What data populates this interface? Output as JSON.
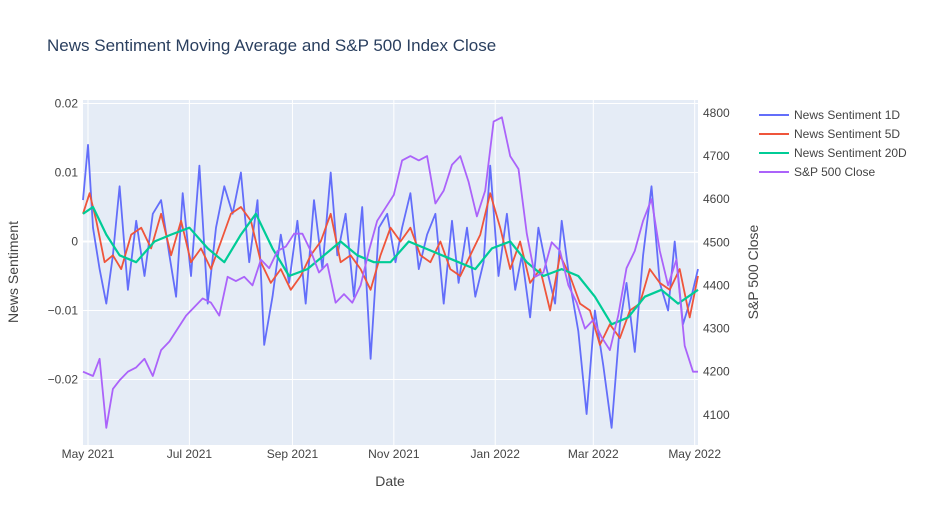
{
  "chart_data": {
    "type": "line",
    "title": "News Sentiment Moving Average and S&P 500 Index Close",
    "xlabel": "Date",
    "ylabel": "News Sentiment",
    "y2label": "S&P 500 Close",
    "xrange": [
      "2021-04-28",
      "2022-05-03"
    ],
    "ylim": [
      -0.0295,
      0.0205
    ],
    "y2lim": [
      4030,
      4830
    ],
    "x_ticks": [
      {
        "value": "2021-05-01",
        "label": "May 2021"
      },
      {
        "value": "2021-07-01",
        "label": "Jul 2021"
      },
      {
        "value": "2021-09-01",
        "label": "Sep 2021"
      },
      {
        "value": "2021-11-01",
        "label": "Nov 2021"
      },
      {
        "value": "2022-01-01",
        "label": "Jan 2022"
      },
      {
        "value": "2022-03-01",
        "label": "Mar 2022"
      },
      {
        "value": "2022-05-01",
        "label": "May 2022"
      }
    ],
    "y_ticks": [
      {
        "value": 0.02,
        "label": "0.02"
      },
      {
        "value": 0.01,
        "label": "0.01"
      },
      {
        "value": 0,
        "label": "0"
      },
      {
        "value": -0.01,
        "label": "−0.01"
      },
      {
        "value": -0.02,
        "label": "−0.02"
      }
    ],
    "y2_ticks": [
      {
        "value": 4800,
        "label": "4800"
      },
      {
        "value": 4700,
        "label": "4700"
      },
      {
        "value": 4600,
        "label": "4600"
      },
      {
        "value": 4500,
        "label": "4500"
      },
      {
        "value": 4400,
        "label": "4400"
      },
      {
        "value": 4300,
        "label": "4300"
      },
      {
        "value": 4200,
        "label": "4200"
      },
      {
        "value": 4100,
        "label": "4100"
      }
    ],
    "grid": true,
    "legend": "right",
    "series": [
      {
        "name": "News Sentiment 1D",
        "color": "#636efa",
        "axis": "y",
        "x": [
          "2021-04-28",
          "2021-05-01",
          "2021-05-04",
          "2021-05-08",
          "2021-05-12",
          "2021-05-16",
          "2021-05-20",
          "2021-05-25",
          "2021-05-30",
          "2021-06-04",
          "2021-06-09",
          "2021-06-14",
          "2021-06-19",
          "2021-06-23",
          "2021-06-27",
          "2021-07-02",
          "2021-07-07",
          "2021-07-12",
          "2021-07-17",
          "2021-07-22",
          "2021-07-27",
          "2021-08-01",
          "2021-08-06",
          "2021-08-11",
          "2021-08-15",
          "2021-08-20",
          "2021-08-25",
          "2021-08-30",
          "2021-09-04",
          "2021-09-09",
          "2021-09-14",
          "2021-09-19",
          "2021-09-24",
          "2021-09-28",
          "2021-10-03",
          "2021-10-08",
          "2021-10-13",
          "2021-10-18",
          "2021-10-23",
          "2021-10-28",
          "2021-11-02",
          "2021-11-06",
          "2021-11-11",
          "2021-11-16",
          "2021-11-21",
          "2021-11-26",
          "2021-12-01",
          "2021-12-06",
          "2021-12-10",
          "2021-12-15",
          "2021-12-20",
          "2021-12-25",
          "2021-12-29",
          "2022-01-03",
          "2022-01-08",
          "2022-01-13",
          "2022-01-17",
          "2022-01-22",
          "2022-01-27",
          "2022-02-01",
          "2022-02-06",
          "2022-02-10",
          "2022-02-15",
          "2022-02-20",
          "2022-02-25",
          "2022-03-02",
          "2022-03-07",
          "2022-03-12",
          "2022-03-17",
          "2022-03-21",
          "2022-03-26",
          "2022-03-31",
          "2022-04-05",
          "2022-04-10",
          "2022-04-15",
          "2022-04-19",
          "2022-04-24",
          "2022-04-29",
          "2022-05-03"
        ],
        "y": [
          0.006,
          0.014,
          0.002,
          -0.004,
          -0.009,
          -0.002,
          0.008,
          -0.007,
          0.003,
          -0.005,
          0.004,
          0.006,
          -0.002,
          -0.008,
          0.007,
          -0.005,
          0.011,
          -0.009,
          0.002,
          0.008,
          0.004,
          0.01,
          -0.003,
          0.006,
          -0.015,
          -0.008,
          0.001,
          -0.006,
          0.003,
          -0.009,
          0.006,
          -0.004,
          0.01,
          -0.002,
          0.004,
          -0.008,
          0.005,
          -0.017,
          0.002,
          0.004,
          -0.003,
          0.002,
          0.007,
          -0.004,
          0.001,
          0.004,
          -0.009,
          0.003,
          -0.006,
          0.002,
          -0.008,
          -0.003,
          0.011,
          -0.005,
          0.004,
          -0.007,
          -0.002,
          -0.011,
          0.002,
          -0.004,
          -0.009,
          0.003,
          -0.006,
          -0.013,
          -0.025,
          -0.01,
          -0.018,
          -0.027,
          -0.012,
          -0.006,
          -0.016,
          -0.002,
          0.008,
          -0.006,
          -0.01,
          0.0,
          -0.012,
          -0.008,
          -0.004
        ]
      },
      {
        "name": "News Sentiment 5D",
        "color": "#ef553b",
        "axis": "y",
        "x": [
          "2021-04-28",
          "2021-05-02",
          "2021-05-06",
          "2021-05-11",
          "2021-05-16",
          "2021-05-21",
          "2021-05-27",
          "2021-06-02",
          "2021-06-08",
          "2021-06-14",
          "2021-06-20",
          "2021-06-26",
          "2021-07-02",
          "2021-07-08",
          "2021-07-14",
          "2021-07-20",
          "2021-07-26",
          "2021-08-01",
          "2021-08-07",
          "2021-08-13",
          "2021-08-19",
          "2021-08-25",
          "2021-08-31",
          "2021-09-06",
          "2021-09-12",
          "2021-09-18",
          "2021-09-24",
          "2021-09-30",
          "2021-10-06",
          "2021-10-12",
          "2021-10-18",
          "2021-10-24",
          "2021-10-30",
          "2021-11-05",
          "2021-11-11",
          "2021-11-17",
          "2021-11-23",
          "2021-11-29",
          "2021-12-05",
          "2021-12-11",
          "2021-12-17",
          "2021-12-23",
          "2021-12-29",
          "2022-01-04",
          "2022-01-10",
          "2022-01-16",
          "2022-01-22",
          "2022-01-28",
          "2022-02-03",
          "2022-02-09",
          "2022-02-15",
          "2022-02-21",
          "2022-02-27",
          "2022-03-05",
          "2022-03-11",
          "2022-03-17",
          "2022-03-23",
          "2022-03-29",
          "2022-04-04",
          "2022-04-10",
          "2022-04-16",
          "2022-04-22",
          "2022-04-28",
          "2022-05-03"
        ],
        "y": [
          0.004,
          0.007,
          0.003,
          -0.003,
          -0.002,
          -0.004,
          0.001,
          0.002,
          -0.001,
          0.004,
          -0.002,
          0.003,
          -0.003,
          -0.001,
          -0.004,
          0.0,
          0.004,
          0.005,
          0.003,
          -0.003,
          -0.006,
          -0.004,
          -0.007,
          -0.005,
          -0.002,
          0.0,
          0.004,
          -0.003,
          -0.002,
          -0.004,
          -0.007,
          -0.002,
          0.002,
          0.0,
          0.002,
          -0.002,
          -0.003,
          0.0,
          -0.004,
          -0.005,
          -0.002,
          0.001,
          0.007,
          0.002,
          -0.004,
          0.0,
          -0.006,
          -0.004,
          -0.01,
          -0.002,
          -0.005,
          -0.009,
          -0.01,
          -0.015,
          -0.012,
          -0.014,
          -0.01,
          -0.009,
          -0.004,
          -0.006,
          -0.007,
          -0.004,
          -0.011,
          -0.005
        ]
      },
      {
        "name": "News Sentiment 20D",
        "color": "#00cc96",
        "axis": "y",
        "x": [
          "2021-04-28",
          "2021-05-04",
          "2021-05-12",
          "2021-05-20",
          "2021-05-30",
          "2021-06-10",
          "2021-06-20",
          "2021-07-01",
          "2021-07-12",
          "2021-07-22",
          "2021-08-01",
          "2021-08-10",
          "2021-08-20",
          "2021-08-30",
          "2021-09-10",
          "2021-09-20",
          "2021-09-30",
          "2021-10-10",
          "2021-10-20",
          "2021-10-30",
          "2021-11-10",
          "2021-11-20",
          "2021-11-30",
          "2021-12-10",
          "2021-12-20",
          "2021-12-30",
          "2022-01-10",
          "2022-01-20",
          "2022-01-30",
          "2022-02-10",
          "2022-02-20",
          "2022-03-02",
          "2022-03-12",
          "2022-03-22",
          "2022-04-01",
          "2022-04-11",
          "2022-04-21",
          "2022-05-03"
        ],
        "y": [
          0.004,
          0.005,
          0.001,
          -0.002,
          -0.003,
          0.0,
          0.001,
          0.002,
          -0.001,
          -0.003,
          0.001,
          0.004,
          -0.001,
          -0.005,
          -0.004,
          -0.002,
          0.0,
          -0.002,
          -0.003,
          -0.003,
          0.0,
          -0.001,
          -0.002,
          -0.003,
          -0.004,
          -0.001,
          0.0,
          -0.003,
          -0.005,
          -0.004,
          -0.005,
          -0.008,
          -0.012,
          -0.011,
          -0.008,
          -0.007,
          -0.009,
          -0.007
        ]
      },
      {
        "name": "S&P 500 Close",
        "color": "#ab63fa",
        "axis": "y2",
        "x": [
          "2021-04-28",
          "2021-05-04",
          "2021-05-08",
          "2021-05-12",
          "2021-05-16",
          "2021-05-20",
          "2021-05-25",
          "2021-05-30",
          "2021-06-04",
          "2021-06-09",
          "2021-06-14",
          "2021-06-19",
          "2021-06-24",
          "2021-06-29",
          "2021-07-04",
          "2021-07-09",
          "2021-07-14",
          "2021-07-19",
          "2021-07-24",
          "2021-07-29",
          "2021-08-03",
          "2021-08-08",
          "2021-08-13",
          "2021-08-18",
          "2021-08-23",
          "2021-08-28",
          "2021-09-02",
          "2021-09-07",
          "2021-09-12",
          "2021-09-17",
          "2021-09-22",
          "2021-09-27",
          "2021-10-02",
          "2021-10-07",
          "2021-10-12",
          "2021-10-17",
          "2021-10-22",
          "2021-10-27",
          "2021-11-01",
          "2021-11-06",
          "2021-11-11",
          "2021-11-16",
          "2021-11-21",
          "2021-11-26",
          "2021-12-01",
          "2021-12-06",
          "2021-12-11",
          "2021-12-16",
          "2021-12-21",
          "2021-12-26",
          "2021-12-31",
          "2022-01-05",
          "2022-01-10",
          "2022-01-15",
          "2022-01-20",
          "2022-01-25",
          "2022-01-30",
          "2022-02-04",
          "2022-02-09",
          "2022-02-14",
          "2022-02-19",
          "2022-02-24",
          "2022-03-01",
          "2022-03-06",
          "2022-03-11",
          "2022-03-16",
          "2022-03-21",
          "2022-03-26",
          "2022-03-31",
          "2022-04-05",
          "2022-04-10",
          "2022-04-15",
          "2022-04-20",
          "2022-04-25",
          "2022-04-30",
          "2022-05-03"
        ],
        "y": [
          4200,
          4190,
          4230,
          4070,
          4160,
          4180,
          4200,
          4210,
          4230,
          4190,
          4250,
          4270,
          4300,
          4330,
          4350,
          4370,
          4360,
          4330,
          4420,
          4410,
          4420,
          4400,
          4460,
          4440,
          4480,
          4490,
          4520,
          4520,
          4480,
          4430,
          4450,
          4360,
          4380,
          4360,
          4400,
          4480,
          4550,
          4580,
          4610,
          4690,
          4700,
          4690,
          4700,
          4590,
          4620,
          4680,
          4700,
          4640,
          4560,
          4620,
          4780,
          4790,
          4700,
          4670,
          4520,
          4420,
          4430,
          4500,
          4480,
          4400,
          4360,
          4300,
          4320,
          4280,
          4250,
          4330,
          4440,
          4480,
          4550,
          4600,
          4480,
          4400,
          4460,
          4260,
          4200,
          4200
        ]
      }
    ]
  }
}
